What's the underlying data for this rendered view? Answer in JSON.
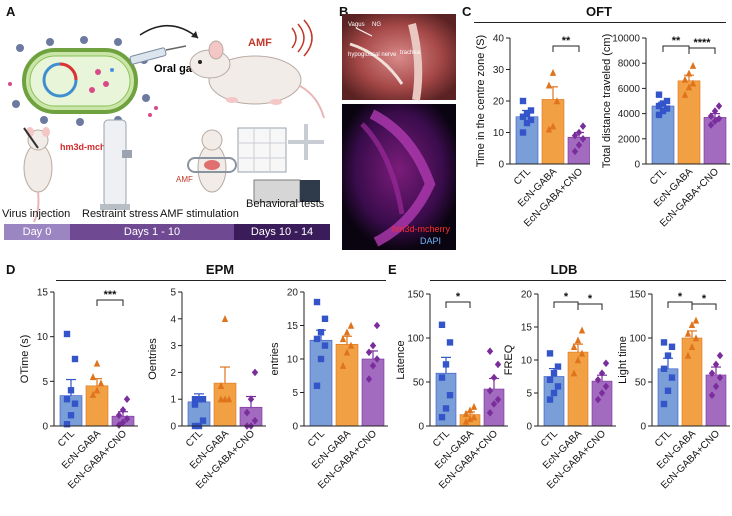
{
  "panels": {
    "A": "A",
    "B": "B",
    "C": "C",
    "D": "D",
    "E": "E"
  },
  "schematic": {
    "oral_gavage": "Oral gavage",
    "amf": "AMF",
    "amf_small": "AMF",
    "hm3d_label": "hm3d-mcherry",
    "steps": [
      "Virus injection",
      "Restraint stress",
      "AMF stimulation",
      "Behavioral tests"
    ],
    "timeline": [
      {
        "label": "Day 0",
        "color": "#9b86c2"
      },
      {
        "label": "Days 1 - 10",
        "color": "#6f4a93"
      },
      {
        "label": "Days 10 - 14",
        "color": "#3b1c5a"
      }
    ]
  },
  "micrographs": {
    "vagus": "Vagus",
    "ng": "NG",
    "hypoglossal": "hypoglossal nerve",
    "trachea": "trachea",
    "hm3d": "hm3d-mcherry",
    "dapi": "DAPI"
  },
  "group_titles": {
    "C": "OFT",
    "D": "EPM",
    "E": "LDB"
  },
  "colors": {
    "CTL": "#7a9fd8",
    "EcN-GABA": "#f2a044",
    "EcN-GABA+CNO": "#a36bc0",
    "CTL_dot": "#3455c9",
    "EcN-GABA_dot": "#e0741c",
    "EcN-GABA+CNO_dot": "#7a2e9c"
  },
  "chart_data": [
    {
      "id": "oft-centre",
      "type": "bar",
      "categories": [
        "CTL",
        "EcN-GABA",
        "EcN-GABA+CNO"
      ],
      "ylabel": "Time in the centre zone (S)",
      "ylim": [
        0,
        40
      ],
      "yticks": [
        0,
        10,
        20,
        30,
        40
      ],
      "values": [
        15,
        20.5,
        8.5
      ],
      "errors": [
        2,
        4,
        1.5
      ],
      "points": [
        [
          10,
          13,
          14,
          15,
          16,
          17,
          20
        ],
        [
          11,
          12,
          20,
          25,
          29
        ],
        [
          4,
          6,
          8,
          9,
          10,
          12
        ]
      ],
      "significance": [
        {
          "between": [
            1,
            2
          ],
          "label": "**"
        }
      ]
    },
    {
      "id": "oft-distance",
      "type": "bar",
      "categories": [
        "CTL",
        "EcN-GABA",
        "EcN-GABA+CNO"
      ],
      "ylabel": "Total distance traveled (cm)",
      "ylim": [
        0,
        10000
      ],
      "yticks": [
        0,
        2000,
        4000,
        6000,
        8000,
        10000
      ],
      "values": [
        4600,
        6600,
        3700
      ],
      "errors": [
        300,
        450,
        300
      ],
      "points": [
        [
          3900,
          4200,
          4400,
          4600,
          4800,
          5000,
          5500
        ],
        [
          5500,
          6100,
          6400,
          6700,
          7200,
          7800
        ],
        [
          3100,
          3400,
          3600,
          3800,
          4200,
          4600
        ]
      ],
      "significance": [
        {
          "between": [
            0,
            1
          ],
          "label": "**"
        },
        {
          "between": [
            1,
            2
          ],
          "label": "****"
        }
      ]
    },
    {
      "id": "epm-time",
      "type": "bar",
      "categories": [
        "CTL",
        "EcN-GABA",
        "EcN-GABA+CNO"
      ],
      "ylabel": "OTime  (s)",
      "ylim": [
        0,
        15
      ],
      "yticks": [
        0,
        5,
        10,
        15
      ],
      "values": [
        3.4,
        4.5,
        1.1
      ],
      "errors": [
        1.8,
        0.8,
        0.5
      ],
      "points": [
        [
          0.2,
          1.2,
          2.5,
          3,
          4,
          7.5,
          10.3
        ],
        [
          3.5,
          4,
          4.8,
          5.5,
          7
        ],
        [
          0.1,
          0.4,
          0.8,
          1.2,
          1.8,
          3
        ]
      ],
      "significance": [
        {
          "between": [
            1,
            2
          ],
          "label": "***"
        }
      ]
    },
    {
      "id": "epm-oentries",
      "type": "bar",
      "categories": [
        "CTL",
        "EcN-GABA",
        "EcN-GABA+CNO"
      ],
      "ylabel": "Oentries",
      "ylim": [
        0,
        5
      ],
      "yticks": [
        0,
        1,
        2,
        3,
        4,
        5
      ],
      "values": [
        0.9,
        1.6,
        0.7
      ],
      "errors": [
        0.3,
        0.6,
        0.4
      ],
      "points": [
        [
          0,
          0,
          0.2,
          0.8,
          1,
          1,
          1
        ],
        [
          1,
          1,
          1,
          1.5,
          4
        ],
        [
          0,
          0,
          0.2,
          0.5,
          1,
          2
        ]
      ],
      "significance": []
    },
    {
      "id": "epm-entries",
      "type": "bar",
      "categories": [
        "CTL",
        "EcN-GABA",
        "EcN-GABA+CNO"
      ],
      "ylabel": "entries",
      "ylim": [
        0,
        20
      ],
      "yticks": [
        0,
        5,
        10,
        15,
        20
      ],
      "values": [
        12.8,
        12.2,
        10
      ],
      "errors": [
        1.5,
        1.2,
        1.2
      ],
      "points": [
        [
          6,
          10,
          12,
          13,
          14,
          16,
          18.5
        ],
        [
          9,
          11,
          12,
          13,
          14,
          15
        ],
        [
          7,
          9,
          10,
          11,
          12,
          15
        ]
      ],
      "significance": []
    },
    {
      "id": "ldb-latence",
      "type": "bar",
      "categories": [
        "CTL",
        "EcN-GABA",
        "EcN-GABA+CNO"
      ],
      "ylabel": "Latence",
      "ylim": [
        0,
        150
      ],
      "yticks": [
        0,
        50,
        100,
        150
      ],
      "values": [
        60,
        13,
        42
      ],
      "errors": [
        18,
        3,
        12
      ],
      "points": [
        [
          10,
          20,
          35,
          55,
          70,
          95,
          115
        ],
        [
          5,
          8,
          10,
          14,
          18,
          22
        ],
        [
          15,
          25,
          30,
          40,
          55,
          70,
          85
        ]
      ],
      "significance": [
        {
          "between": [
            0,
            1
          ],
          "label": "*"
        }
      ]
    },
    {
      "id": "ldb-freq",
      "type": "bar",
      "categories": [
        "CTL",
        "EcN-GABA",
        "EcN-GABA+CNO"
      ],
      "ylabel": "FREQ",
      "ylim": [
        0,
        20
      ],
      "yticks": [
        0,
        5,
        10,
        15,
        20
      ],
      "values": [
        7.5,
        11.2,
        6.8
      ],
      "errors": [
        1.2,
        1.2,
        0.9
      ],
      "points": [
        [
          4,
          5,
          6,
          7,
          8,
          9,
          11
        ],
        [
          8,
          10,
          11,
          12,
          13,
          14.5
        ],
        [
          4,
          5,
          6,
          7,
          8,
          9.5
        ]
      ],
      "significance": [
        {
          "between": [
            0,
            1
          ],
          "label": "*"
        },
        {
          "between": [
            1,
            2
          ],
          "label": "*"
        }
      ]
    },
    {
      "id": "ldb-light",
      "type": "bar",
      "categories": [
        "CTL",
        "EcN-GABA",
        "EcN-GABA+CNO"
      ],
      "ylabel": "Light time",
      "ylim": [
        0,
        150
      ],
      "yticks": [
        0,
        50,
        100,
        150
      ],
      "values": [
        65,
        100,
        58
      ],
      "errors": [
        12,
        8,
        9
      ],
      "points": [
        [
          25,
          40,
          55,
          65,
          80,
          90,
          95
        ],
        [
          80,
          90,
          100,
          105,
          115,
          120
        ],
        [
          35,
          45,
          55,
          60,
          70,
          80
        ]
      ],
      "significance": [
        {
          "between": [
            0,
            1
          ],
          "label": "*"
        },
        {
          "between": [
            1,
            2
          ],
          "label": "*"
        }
      ]
    }
  ]
}
